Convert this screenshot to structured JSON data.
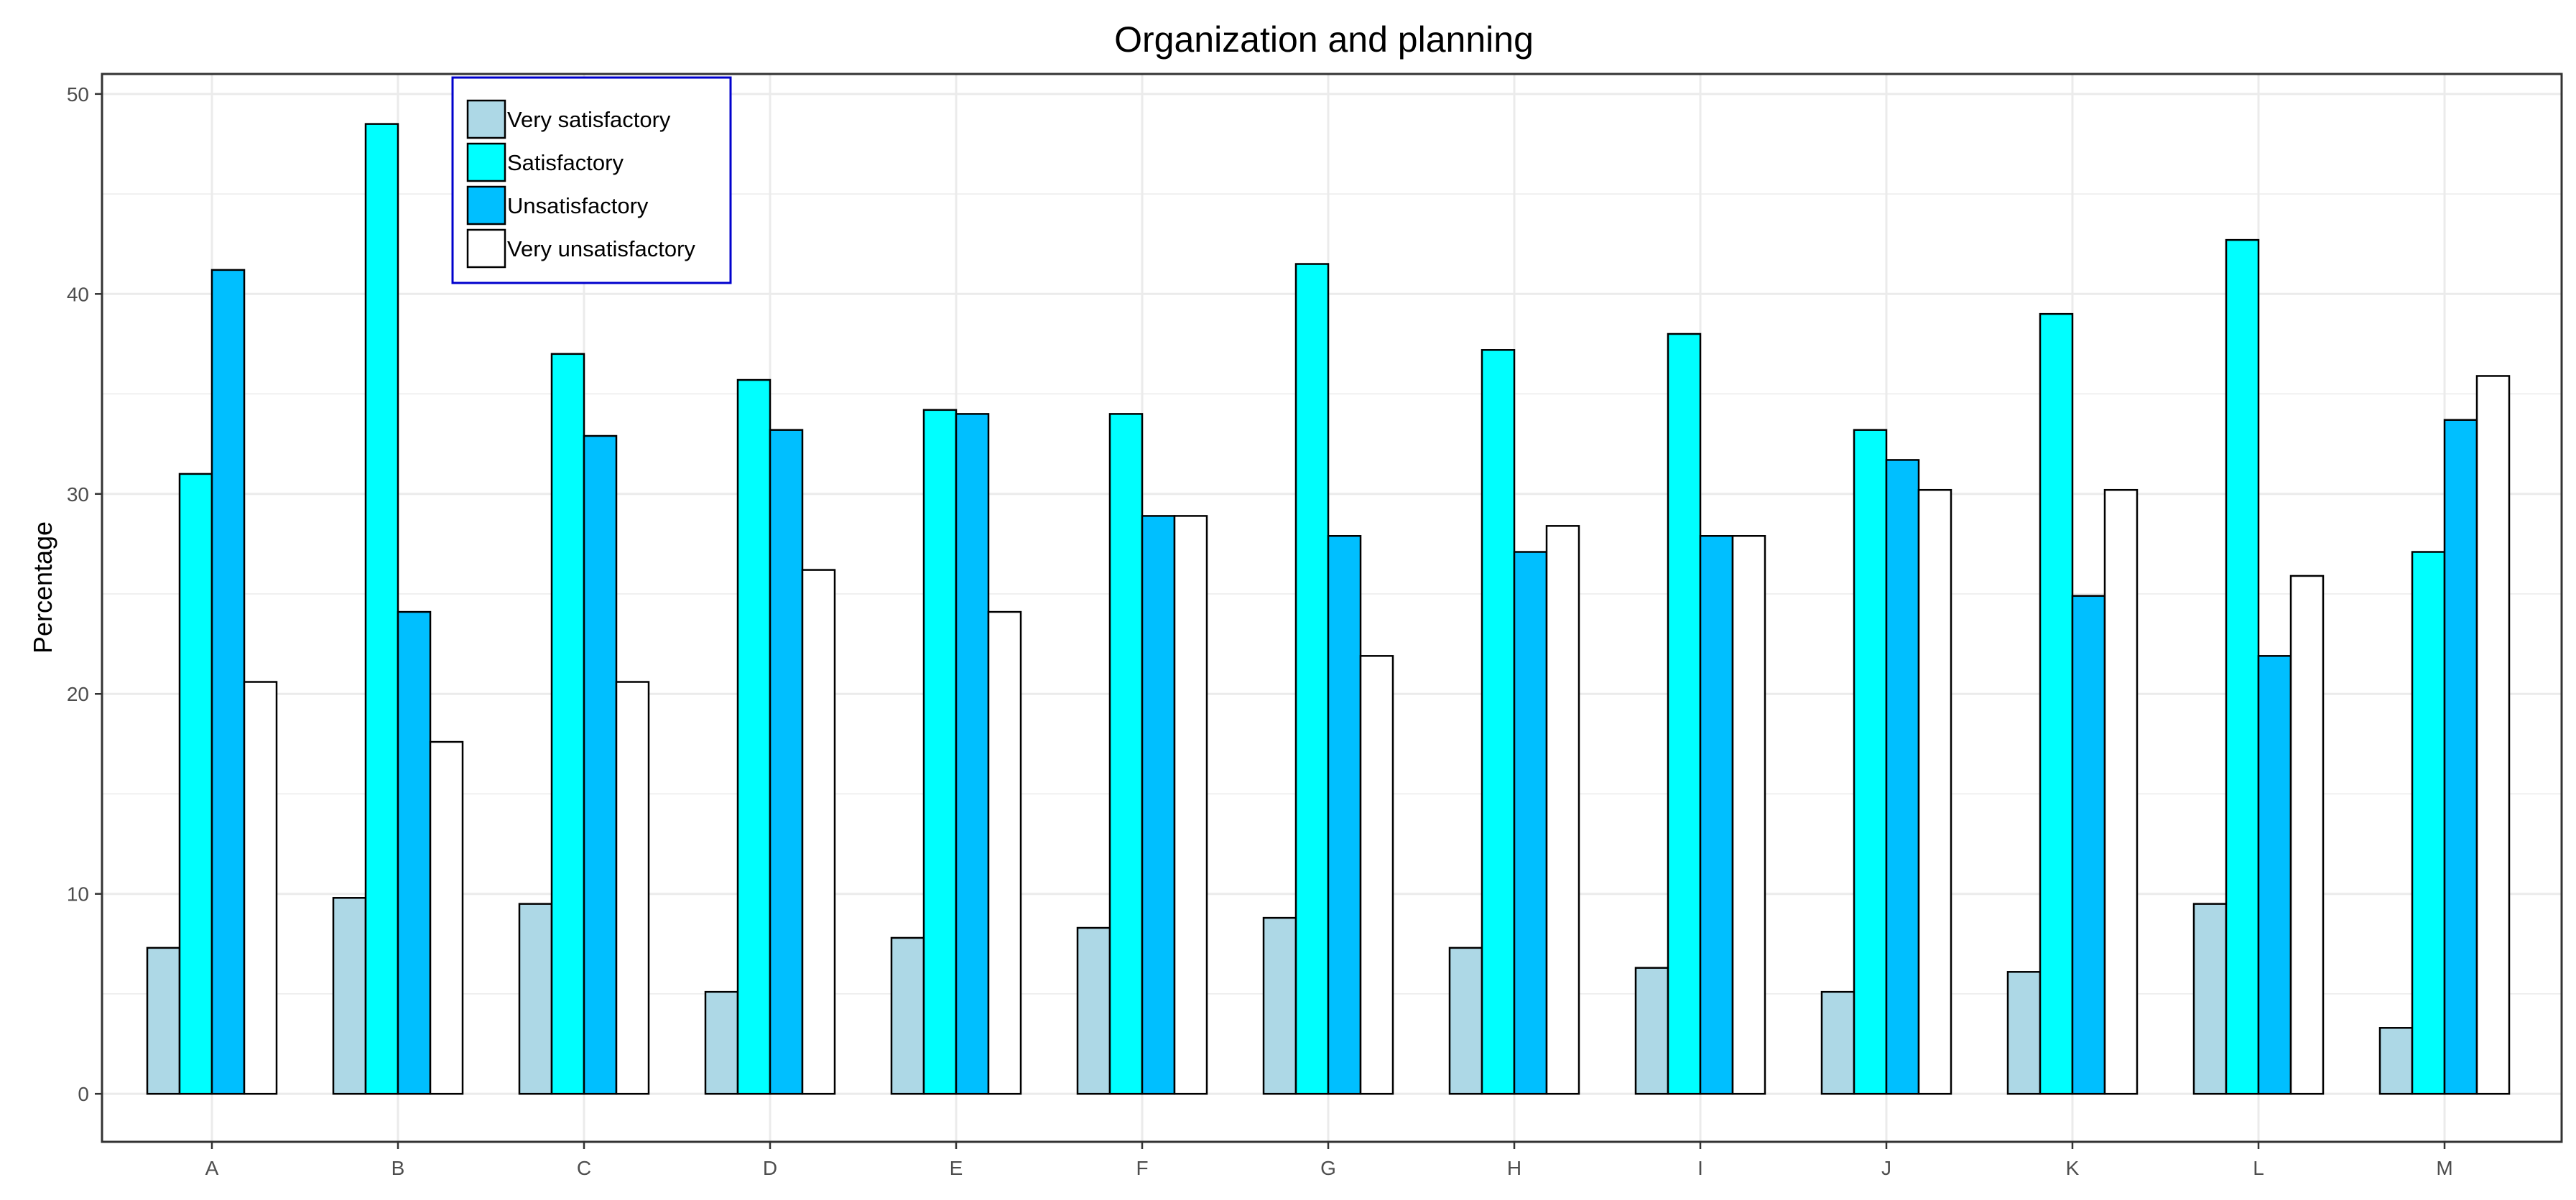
{
  "chart_data": {
    "type": "bar",
    "title": "Organization and planning",
    "xlabel": "",
    "ylabel": "Percentage",
    "ylim": [
      -2.4,
      51
    ],
    "yticks": [
      0,
      10,
      20,
      30,
      40,
      50
    ],
    "grid": true,
    "legend_position": "top-left",
    "categories": [
      "A",
      "B",
      "C",
      "D",
      "E",
      "F",
      "G",
      "H",
      "I",
      "J",
      "K",
      "L",
      "M"
    ],
    "series": [
      {
        "name": "Very satisfactory",
        "color": "#ADD8E6",
        "values": [
          7.3,
          9.8,
          9.5,
          5.1,
          7.8,
          8.3,
          8.8,
          7.3,
          6.3,
          5.1,
          6.1,
          9.5,
          3.3
        ]
      },
      {
        "name": "Satisfactory",
        "color": "#00FFFF",
        "values": [
          31.0,
          48.5,
          37.0,
          35.7,
          34.2,
          34.0,
          41.5,
          37.2,
          38.0,
          33.2,
          39.0,
          42.7,
          27.1
        ]
      },
      {
        "name": "Unsatisfactory",
        "color": "#00BFFF",
        "values": [
          41.2,
          24.1,
          32.9,
          33.2,
          34.0,
          28.9,
          27.9,
          27.1,
          27.9,
          31.7,
          24.9,
          21.9,
          33.7
        ]
      },
      {
        "name": "Very unsatisfactory",
        "color": "#FFFFFF",
        "values": [
          20.6,
          17.6,
          20.6,
          26.2,
          24.1,
          28.9,
          21.9,
          28.4,
          27.9,
          30.2,
          30.2,
          25.9,
          35.9
        ]
      }
    ],
    "colors": {
      "panel_border": "#333333",
      "grid": "#EBEBEB",
      "legend_border": "#0000CD",
      "bar_outline": "#000000",
      "tick_text": "#4D4D4D"
    }
  }
}
